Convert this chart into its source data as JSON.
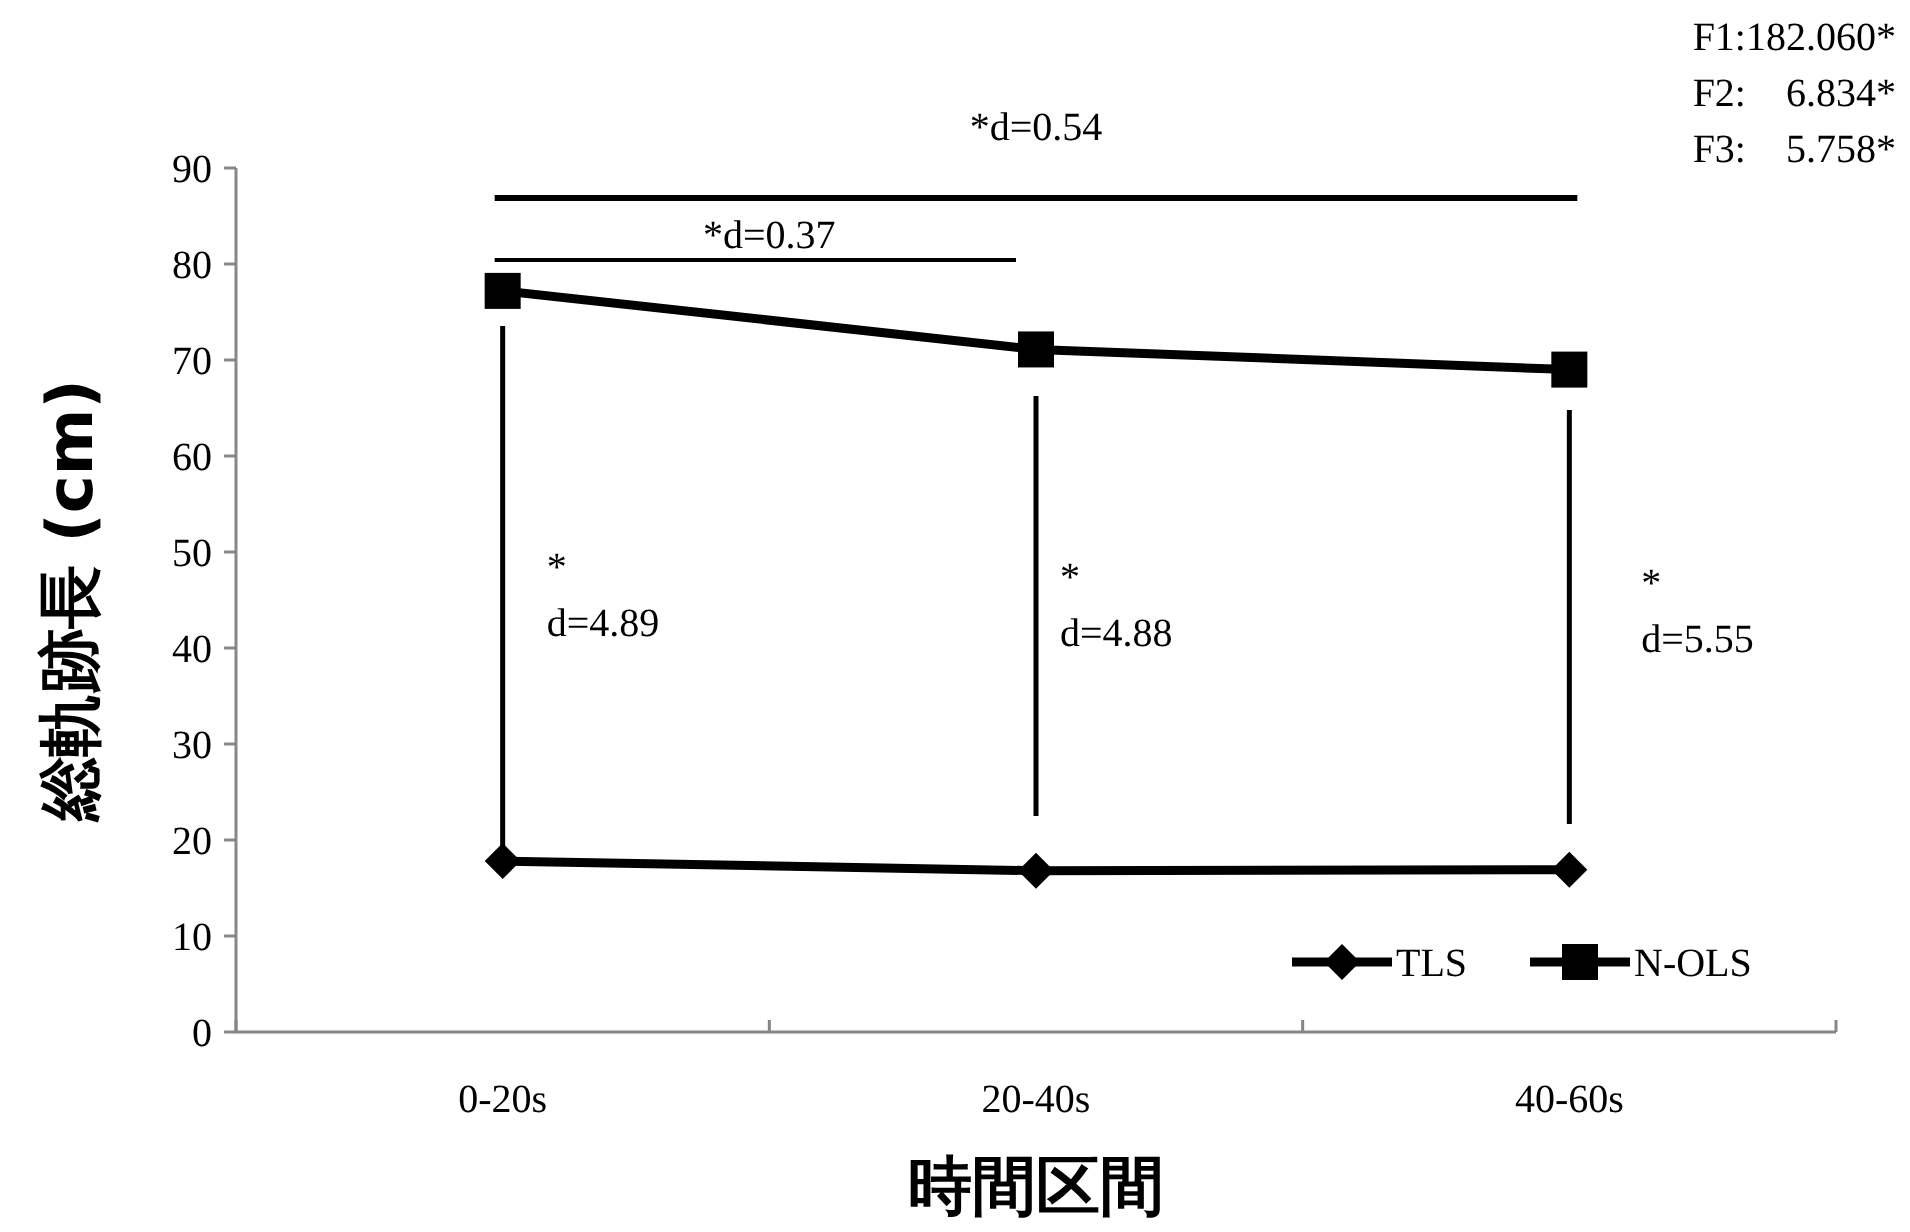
{
  "chart_data": {
    "type": "line",
    "xlabel": "時間区間",
    "ylabel": "総軌跡長 (cm)",
    "categories": [
      "0-20s",
      "20-40s",
      "40-60s"
    ],
    "series": [
      {
        "name": "TLS",
        "color": "#000000",
        "marker": "diamond",
        "values": [
          17.8,
          16.8,
          16.9
        ]
      },
      {
        "name": "N-OLS",
        "color": "#000000",
        "marker": "square",
        "values": [
          77.2,
          71.1,
          69.0
        ]
      }
    ],
    "ylim": [
      0,
      90
    ],
    "yticks": [
      0,
      10,
      20,
      30,
      40,
      50,
      60,
      70,
      80,
      90
    ],
    "grid": false,
    "legend": "bottom right",
    "line_style": "solid",
    "annotations": [
      "*d=0.54",
      "*d=0.37",
      "*\nd=4.89",
      "*\nd=4.88",
      "*\nd=5.55",
      "F1:182.060*\nF2:    6.834*\nF3:    5.758*"
    ]
  }
}
